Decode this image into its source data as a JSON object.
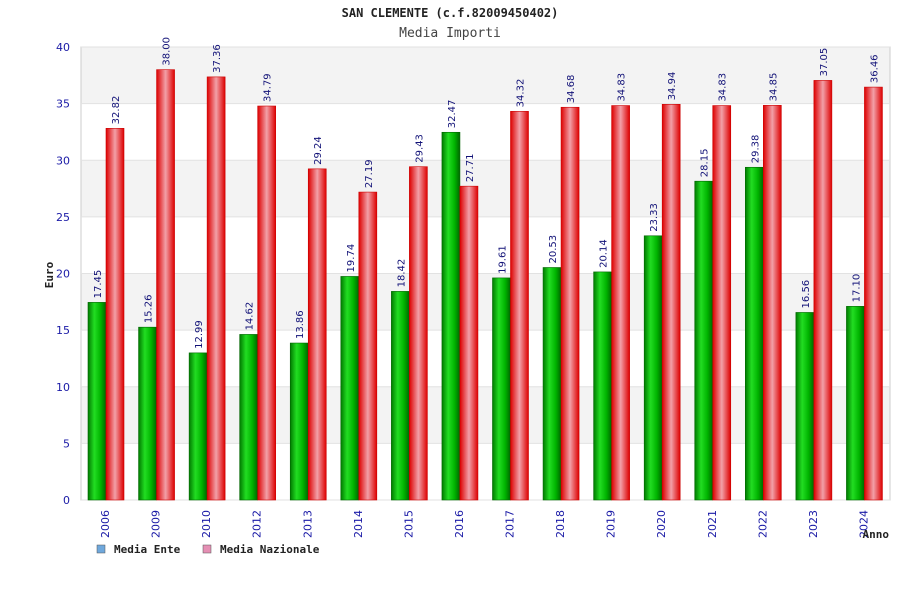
{
  "chart_data": {
    "type": "bar",
    "title": "SAN CLEMENTE (c.f.82009450402)",
    "subtitle": "Media Importi",
    "xlabel": "Anno",
    "ylabel": "Euro",
    "ylim": [
      0,
      40
    ],
    "yticks": [
      0,
      5,
      10,
      15,
      20,
      25,
      30,
      35,
      40
    ],
    "grid": true,
    "legend_position": "bottom-left",
    "categories": [
      "2006",
      "2009",
      "2010",
      "2012",
      "2013",
      "2014",
      "2015",
      "2016",
      "2017",
      "2018",
      "2019",
      "2020",
      "2021",
      "2022",
      "2023",
      "2024"
    ],
    "series": [
      {
        "name": "Media Ente",
        "color": "#00aa00",
        "legend_color": "#6fa8dc",
        "values": [
          17.45,
          15.26,
          12.99,
          14.62,
          13.86,
          19.74,
          18.42,
          32.47,
          19.61,
          20.53,
          20.14,
          23.33,
          28.15,
          29.38,
          16.56,
          17.1
        ],
        "labels": [
          "17.45",
          "15.26",
          "12.99",
          "14.62",
          "13.86",
          "19.74",
          "18.42",
          "32.47",
          "19.61",
          "20.53",
          "20.14",
          "23.33",
          "28.15",
          "29.38",
          "16.56",
          "17.10"
        ]
      },
      {
        "name": "Media Nazionale",
        "color": "#ee1111",
        "legend_color": "#e58fb4",
        "values": [
          32.82,
          38.0,
          37.36,
          34.79,
          29.24,
          27.19,
          29.43,
          27.71,
          34.32,
          34.68,
          34.83,
          34.94,
          34.83,
          34.85,
          37.05,
          36.46
        ],
        "labels": [
          "32.82",
          "38.00",
          "37.36",
          "34.79",
          "29.24",
          "27.19",
          "29.43",
          "27.71",
          "34.32",
          "34.68",
          "34.83",
          "34.94",
          "34.83",
          "34.85",
          "37.05",
          "36.46"
        ]
      }
    ]
  }
}
